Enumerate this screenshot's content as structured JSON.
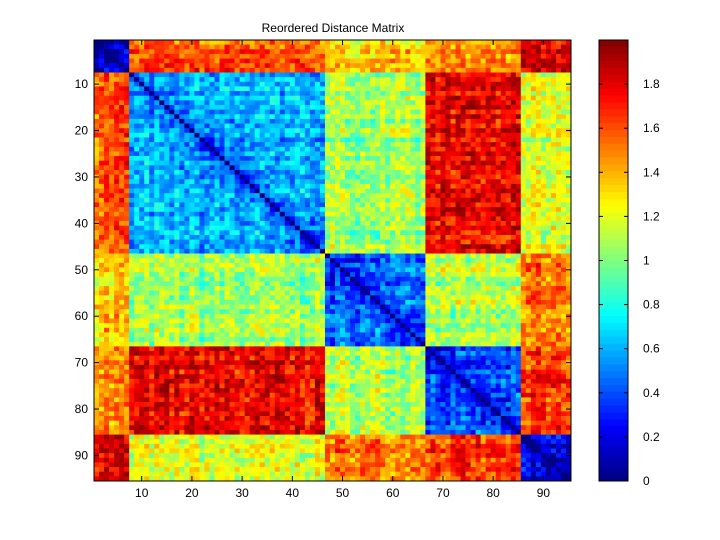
{
  "chart_data": {
    "type": "heatmap",
    "title": "Reordered Distance Matrix",
    "xlabel": "",
    "ylabel": "",
    "n": 95,
    "x_range": [
      0.5,
      95.5
    ],
    "y_range": [
      0.5,
      95.5
    ],
    "x_ticks": [
      10,
      20,
      30,
      40,
      50,
      60,
      70,
      80,
      90
    ],
    "y_ticks": [
      10,
      20,
      30,
      40,
      50,
      60,
      70,
      80,
      90
    ],
    "colormap": "jet",
    "color_range": [
      0,
      2
    ],
    "colorbar_ticks": [
      0,
      0.2,
      0.4,
      0.6,
      0.8,
      1,
      1.2,
      1.4,
      1.6,
      1.8
    ],
    "clusters": [
      [
        1,
        7
      ],
      [
        8,
        46
      ],
      [
        47,
        66
      ],
      [
        67,
        85
      ],
      [
        86,
        95
      ]
    ],
    "cluster_mean_distance": [
      [
        0.25,
        1.6,
        1.35,
        1.45,
        1.8
      ],
      [
        1.6,
        0.6,
        1.05,
        1.75,
        1.2
      ],
      [
        1.35,
        1.05,
        0.45,
        1.1,
        1.55
      ],
      [
        1.45,
        1.75,
        1.1,
        0.4,
        1.65
      ],
      [
        1.8,
        1.2,
        1.55,
        1.65,
        0.25
      ]
    ]
  }
}
